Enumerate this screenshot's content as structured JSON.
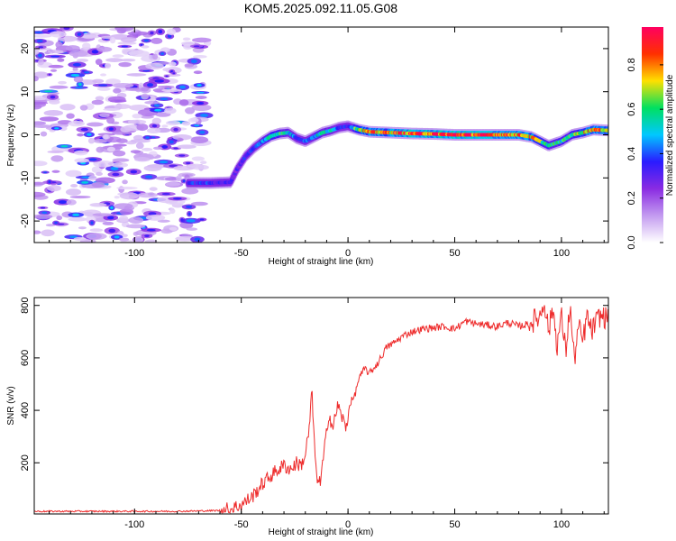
{
  "title": "KOM5.2025.092.11.05.G08",
  "chart_data": [
    {
      "type": "heatmap",
      "xlabel": "Height of straight line (km)",
      "ylabel": "Frequency (Hz)",
      "xlim": [
        -147,
        122
      ],
      "ylim": [
        -25,
        25
      ],
      "xticks": [
        -100,
        -50,
        0,
        50,
        100
      ],
      "yticks": [
        -20,
        -10,
        0,
        10,
        20
      ],
      "colorbar": {
        "label": "Normalized spectral amplitude",
        "range": [
          0,
          0.97
        ],
        "ticks": [
          0.0,
          0.2,
          0.4,
          0.6,
          0.8
        ],
        "colors": [
          "#ffffff",
          "#c39bf0",
          "#8a2be2",
          "#2a1bff",
          "#00c8ff",
          "#00e060",
          "#ffe000",
          "#ff3000",
          "#ff0060"
        ]
      },
      "ridge": {
        "x": [
          -75,
          -65,
          -55,
          -52,
          -48,
          -44,
          -40,
          -36,
          -32,
          -28,
          -24,
          -20,
          -16,
          -12,
          -8,
          -4,
          0,
          5,
          10,
          20,
          30,
          40,
          50,
          60,
          70,
          80,
          86,
          90,
          94,
          100,
          105,
          110,
          115,
          122
        ],
        "y": [
          -11.2,
          -11.2,
          -11,
          -8,
          -5,
          -3,
          -1.5,
          -0.3,
          0.3,
          0.5,
          -0.8,
          -1.5,
          -0.5,
          0.5,
          1,
          1.7,
          2,
          1.2,
          0.7,
          0.5,
          0.3,
          0.2,
          0,
          0,
          0,
          0,
          -0.5,
          -1.5,
          -2.5,
          -1.5,
          0,
          0.5,
          1.2,
          1.0
        ],
        "amplitude": [
          0.35,
          0.35,
          0.3,
          0.3,
          0.35,
          0.35,
          0.45,
          0.55,
          0.6,
          0.5,
          0.4,
          0.4,
          0.45,
          0.55,
          0.5,
          0.4,
          0.35,
          0.7,
          0.75,
          0.8,
          0.85,
          0.85,
          0.9,
          0.88,
          0.85,
          0.8,
          0.75,
          0.65,
          0.55,
          0.55,
          0.6,
          0.7,
          0.8,
          0.75
        ]
      },
      "noise_region_x": [
        -147,
        -65
      ]
    },
    {
      "type": "line",
      "xlabel": "Height of straight line (km)",
      "ylabel": "SNR (v/v)",
      "xlim": [
        -147,
        122
      ],
      "ylim": [
        5,
        830
      ],
      "xticks": [
        -100,
        -50,
        0,
        50,
        100
      ],
      "yticks": [
        200,
        400,
        600,
        800
      ],
      "series": [
        {
          "color": "#ee2c2c",
          "x": [
            -147,
            -120,
            -100,
            -80,
            -60,
            -55,
            -50,
            -45,
            -40,
            -35,
            -30,
            -27,
            -24,
            -22,
            -20,
            -18,
            -17,
            -15,
            -13,
            -11,
            -9,
            -7,
            -5,
            -3,
            -1,
            1,
            3,
            5,
            8,
            10,
            14,
            18,
            22,
            26,
            30,
            35,
            40,
            45,
            50,
            55,
            60,
            65,
            70,
            75,
            80,
            85,
            90,
            92,
            94,
            96,
            98,
            100,
            102,
            104,
            106,
            108,
            110,
            112,
            114,
            116,
            118,
            122
          ],
          "y": [
            15,
            15,
            15,
            15,
            18,
            25,
            40,
            70,
            120,
            160,
            190,
            175,
            200,
            190,
            230,
            340,
            480,
            160,
            120,
            250,
            390,
            330,
            420,
            380,
            330,
            430,
            450,
            520,
            560,
            540,
            580,
            640,
            660,
            685,
            700,
            710,
            715,
            720,
            710,
            740,
            730,
            725,
            720,
            735,
            720,
            730,
            760,
            820,
            700,
            790,
            650,
            760,
            620,
            800,
            590,
            720,
            660,
            760,
            700,
            730,
            760,
            750
          ]
        }
      ]
    }
  ]
}
